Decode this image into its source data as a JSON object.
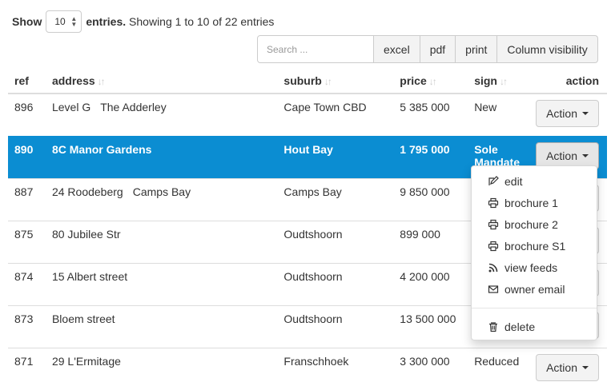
{
  "length_menu": {
    "show_label": "Show",
    "value": "10",
    "entries_label": "entries."
  },
  "info": "Showing 1 to 10 of 22 entries",
  "search": {
    "placeholder": "Search ..."
  },
  "toolbar": {
    "excel": "excel",
    "pdf": "pdf",
    "print": "print",
    "column_visibility": "Column visibility"
  },
  "columns": {
    "ref": "ref",
    "address": "address",
    "suburb": "suburb",
    "price": "price",
    "sign": "sign",
    "action": "action"
  },
  "action_label": "Action",
  "rows": [
    {
      "ref": "896",
      "address": [
        "Level G",
        "The Adderley"
      ],
      "suburb": "Cape Town CBD",
      "price": "5 385 000",
      "sign": "New",
      "selected": false
    },
    {
      "ref": "890",
      "address": [
        "8C Manor Gardens"
      ],
      "suburb": "Hout Bay",
      "price": "1 795 000",
      "sign": "Sole Mandate",
      "selected": true
    },
    {
      "ref": "887",
      "address": [
        "24 Roodeberg",
        "Camps Bay"
      ],
      "suburb": "Camps Bay",
      "price": "9 850 000",
      "sign": "",
      "selected": false
    },
    {
      "ref": "875",
      "address": [
        "80 Jubilee Str"
      ],
      "suburb": "Oudtshoorn",
      "price": "899 000",
      "sign": "",
      "selected": false
    },
    {
      "ref": "874",
      "address": [
        "15 Albert street"
      ],
      "suburb": "Oudtshoorn",
      "price": "4 200 000",
      "sign": "",
      "selected": false
    },
    {
      "ref": "873",
      "address": [
        "Bloem street"
      ],
      "suburb": "Oudtshoorn",
      "price": "13 500 000",
      "sign": "",
      "selected": false
    },
    {
      "ref": "871",
      "address": [
        "29 L'Ermitage"
      ],
      "suburb": "Franschhoek",
      "price": "3 300 000",
      "sign": "Reduced",
      "selected": false
    }
  ],
  "dropdown": {
    "items": [
      {
        "label": "edit",
        "icon": "edit-icon"
      },
      {
        "label": "brochure 1",
        "icon": "printer-icon"
      },
      {
        "label": "brochure 2",
        "icon": "printer-icon"
      },
      {
        "label": "brochure S1",
        "icon": "printer-icon"
      },
      {
        "label": "view feeds",
        "icon": "rss-icon"
      },
      {
        "label": "owner email",
        "icon": "envelope-icon"
      }
    ],
    "delete": {
      "label": "delete",
      "icon": "trash-icon"
    }
  }
}
